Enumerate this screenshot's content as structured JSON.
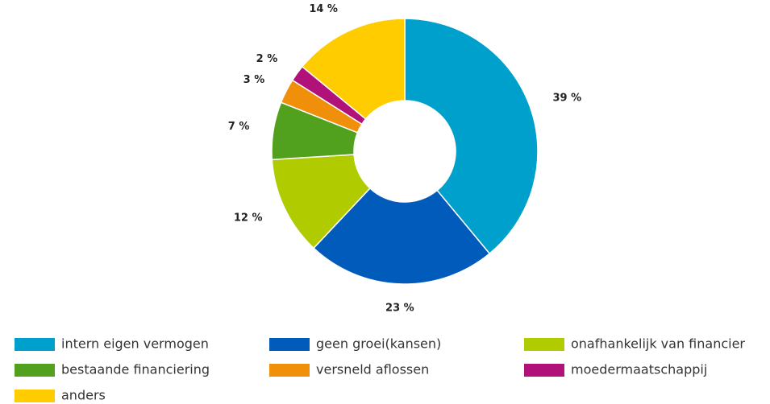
{
  "chart_data": {
    "type": "pie",
    "categories": [
      "intern eigen vermogen",
      "geen groei(kansen)",
      "onafhankelijk van financier",
      "bestaande financiering",
      "versneld aflossen",
      "moedermaatschappij",
      "anders"
    ],
    "values": [
      39,
      23,
      12,
      7,
      3,
      2,
      14
    ],
    "value_labels": [
      "39 %",
      "23 %",
      "12 %",
      "7 %",
      "3 %",
      "2 %",
      "14 %"
    ],
    "colors": [
      "#00a0cc",
      "#005bbb",
      "#b0cb00",
      "#52a11e",
      "#f0900a",
      "#b0127a",
      "#ffcc00"
    ]
  }
}
